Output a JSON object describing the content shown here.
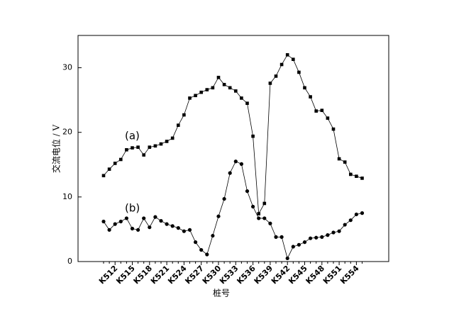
{
  "chart_data": {
    "type": "line",
    "x_label": "桩号",
    "y_label": "交流电位 / V",
    "annotations": [
      "(a)",
      "(b)"
    ],
    "categories": [
      null,
      null,
      "K512",
      null,
      null,
      "K515",
      null,
      null,
      "K518",
      null,
      null,
      "K521",
      null,
      null,
      "K524",
      null,
      null,
      "K527",
      null,
      null,
      "K530",
      null,
      null,
      "K533",
      null,
      null,
      "K536",
      null,
      null,
      "K539",
      null,
      null,
      "K542",
      null,
      null,
      "K545",
      null,
      null,
      "K548",
      null,
      null,
      "K551",
      null,
      null,
      "K554",
      null
    ],
    "series": [
      {
        "name": "(a)",
        "color": "#000000",
        "marker": "square",
        "values": [
          13.3,
          14.3,
          15.2,
          15.8,
          17.3,
          17.6,
          17.7,
          16.5,
          17.7,
          17.9,
          18.2,
          18.6,
          19.1,
          21.1,
          22.7,
          25.3,
          25.7,
          26.2,
          26.6,
          26.9,
          28.5,
          27.4,
          26.9,
          26.4,
          25.3,
          24.5,
          19.4,
          7.4,
          9.0,
          27.6,
          28.7,
          30.5,
          32.0,
          31.3,
          29.3,
          26.9,
          25.5,
          23.3,
          23.4,
          22.2,
          20.5,
          15.9,
          15.4,
          13.5,
          13.2,
          12.9
        ]
      },
      {
        "name": "(b)",
        "color": "#000000",
        "marker": "circle",
        "values": [
          6.2,
          4.9,
          5.8,
          6.2,
          6.7,
          5.1,
          4.9,
          6.7,
          5.3,
          6.9,
          6.3,
          5.8,
          5.5,
          5.2,
          4.7,
          4.9,
          3.0,
          1.8,
          1.1,
          4.0,
          7.0,
          9.7,
          13.7,
          15.5,
          15.1,
          10.9,
          8.5,
          6.7,
          6.7,
          5.9,
          3.8,
          3.8,
          0.5,
          2.3,
          2.6,
          3.0,
          3.6,
          3.7,
          3.8,
          4.1,
          4.5,
          4.7,
          5.7,
          6.4,
          7.3,
          7.5
        ]
      }
    ],
    "ylim": [
      0,
      35
    ],
    "yticks": [
      0,
      10,
      20,
      30
    ],
    "grid": false
  }
}
